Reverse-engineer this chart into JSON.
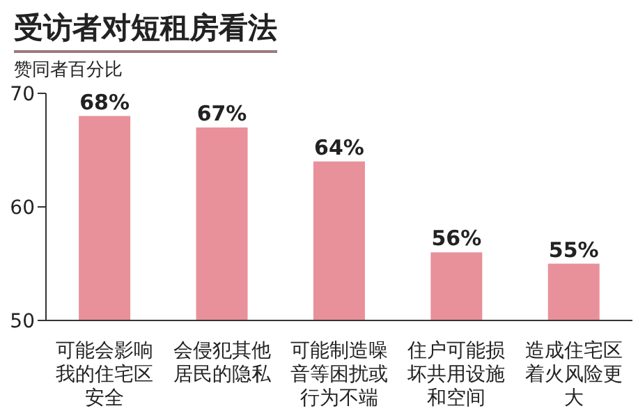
{
  "chart_data": {
    "type": "bar",
    "title": "受访者对短租房看法",
    "ylabel": "赞同者百分比",
    "categories": [
      "可能会影响我的住宅区安全",
      "会侵犯其他居民的隐私",
      "可能制造噪音等困扰或行为不端",
      "住户可能损坏共用设施和空间",
      "造成住宅区着火风险更大"
    ],
    "values": [
      68,
      67,
      64,
      56,
      55
    ],
    "value_labels": [
      "68%",
      "67%",
      "64%",
      "56%",
      "55%"
    ],
    "color": "#e8919a",
    "ylim": [
      50,
      70
    ],
    "yticks": [
      50,
      60,
      70
    ],
    "grid": false,
    "legend": false
  }
}
